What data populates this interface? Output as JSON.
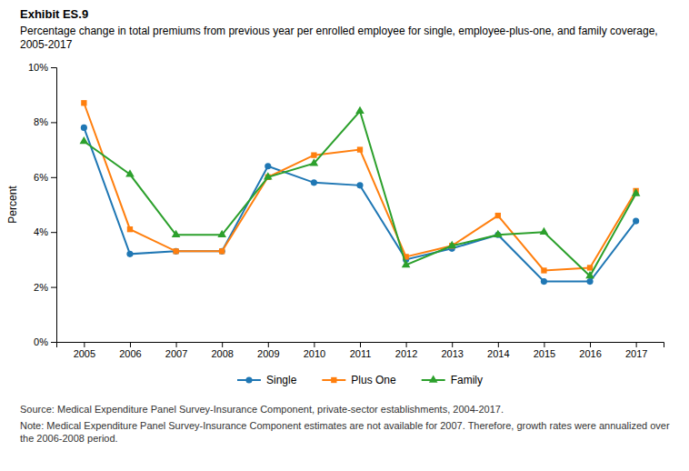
{
  "chart_data": {
    "type": "line",
    "title": "Exhibit ES.9",
    "subtitle": "Percentage change in total premiums from previous year per enrolled employee for single, employee-plus-one, and family coverage, 2005-2017",
    "ylabel": "Percent",
    "x": [
      2005,
      2006,
      2007,
      2008,
      2009,
      2010,
      2011,
      2012,
      2013,
      2014,
      2015,
      2016,
      2017
    ],
    "xlim": [
      2004.4,
      2017.6
    ],
    "xticks": [
      2005,
      2006,
      2007,
      2008,
      2009,
      2010,
      2011,
      2012,
      2013,
      2014,
      2015,
      2016,
      2017
    ],
    "ylim": [
      0,
      10
    ],
    "yticks": [
      {
        "value": 0,
        "label": "0%"
      },
      {
        "value": 2,
        "label": "2%"
      },
      {
        "value": 4,
        "label": "4%"
      },
      {
        "value": 6,
        "label": "6%"
      },
      {
        "value": 8,
        "label": "8%"
      },
      {
        "value": 10,
        "label": "10%"
      }
    ],
    "series": [
      {
        "name": "Single",
        "marker": "circle",
        "values": [
          7.8,
          3.2,
          3.3,
          3.3,
          6.4,
          5.8,
          5.7,
          3.0,
          3.4,
          3.9,
          2.2,
          2.2,
          4.4
        ]
      },
      {
        "name": "Plus One",
        "marker": "square",
        "values": [
          8.7,
          4.1,
          3.3,
          3.3,
          6.0,
          6.8,
          7.0,
          3.1,
          3.5,
          4.6,
          2.6,
          2.7,
          5.5
        ]
      },
      {
        "name": "Family",
        "marker": "triangle",
        "values": [
          7.3,
          6.1,
          3.9,
          3.9,
          6.0,
          6.5,
          8.4,
          2.8,
          3.5,
          3.9,
          4.0,
          2.4,
          5.4
        ]
      }
    ],
    "grid": false,
    "legend": "bottom",
    "annotations": [
      "Source: Medical Expenditure Panel Survey-Insurance Component, private-sector establishments, 2004-2017.",
      "Note: Medical Expenditure Panel Survey-Insurance Component estimates are not available for 2007. Therefore, growth rates were annualized over the 2006-2008 period."
    ]
  }
}
